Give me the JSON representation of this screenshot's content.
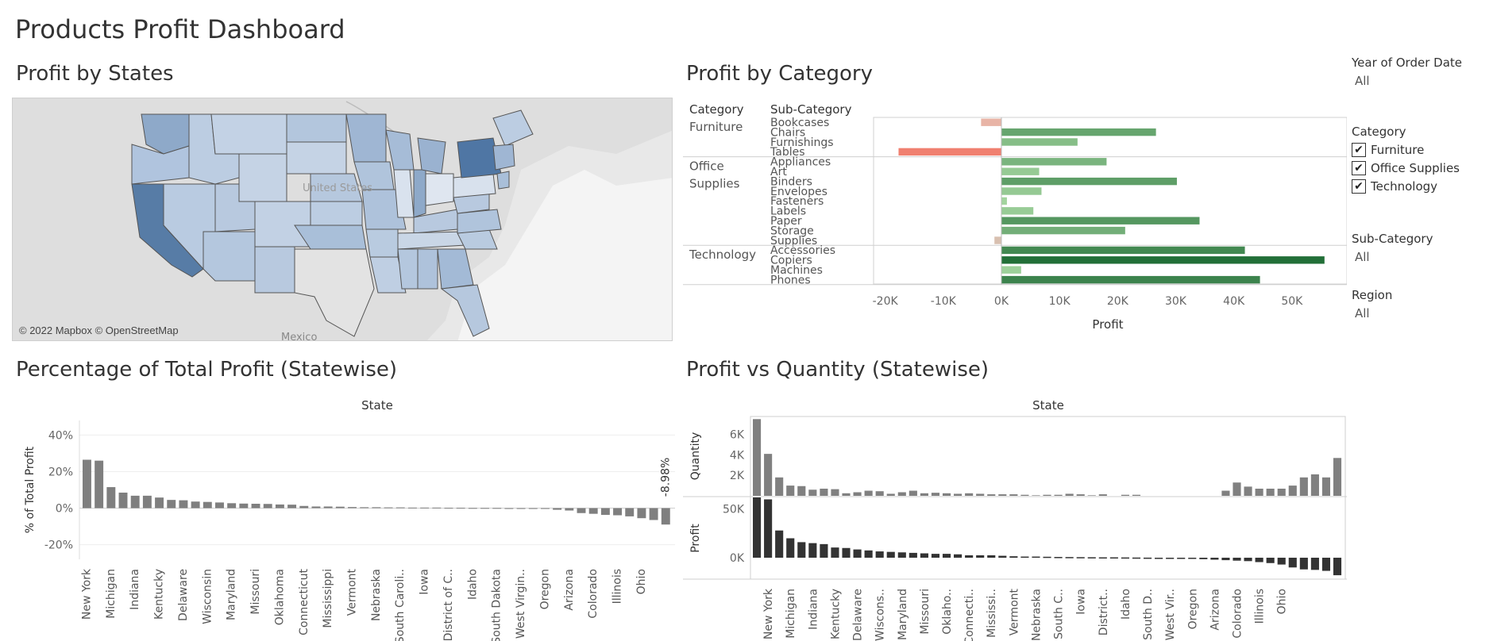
{
  "dashboard_title": "Products Profit Dashboard",
  "map_panel": {
    "title": "Profit by States",
    "attribution": "© 2022 Mapbox © OpenStreetMap",
    "place_labels": {
      "country": "United States",
      "south": "Mexico"
    }
  },
  "filters": {
    "year": {
      "title": "Year of Order Date",
      "value": "All"
    },
    "category": {
      "title": "Category",
      "options": [
        {
          "label": "Furniture",
          "checked": true
        },
        {
          "label": "Office Supplies",
          "checked": true
        },
        {
          "label": "Technology",
          "checked": true
        }
      ]
    },
    "subcategory": {
      "title": "Sub-Category",
      "value": "All"
    },
    "region": {
      "title": "Region",
      "value": "All"
    }
  },
  "colors": {
    "positive_profit": "#2e7d3e",
    "negative_profit": "#f08070",
    "bar_gray": "#7f7f7f",
    "bar_dark": "#333333",
    "map_high": "#4a6f9a",
    "map_low": "#c9d6e6"
  },
  "chart_data": [
    {
      "id": "profit_by_category",
      "title": "Profit by Category",
      "type": "bar",
      "orientation": "horizontal",
      "row_headers": [
        "Category",
        "Sub-Category"
      ],
      "groups": [
        {
          "category": "Furniture",
          "items": [
            {
              "sub": "Bookcases",
              "value": -3500
            },
            {
              "sub": "Chairs",
              "value": 26600
            },
            {
              "sub": "Furnishings",
              "value": 13100
            },
            {
              "sub": "Tables",
              "value": -17700
            }
          ]
        },
        {
          "category": "Office Supplies",
          "items": [
            {
              "sub": "Appliances",
              "value": 18100
            },
            {
              "sub": "Art",
              "value": 6500
            },
            {
              "sub": "Binders",
              "value": 30200
            },
            {
              "sub": "Envelopes",
              "value": 6900
            },
            {
              "sub": "Fasteners",
              "value": 950
            },
            {
              "sub": "Labels",
              "value": 5500
            },
            {
              "sub": "Paper",
              "value": 34100
            },
            {
              "sub": "Storage",
              "value": 21300
            },
            {
              "sub": "Supplies",
              "value": -1200
            }
          ]
        },
        {
          "category": "Technology",
          "items": [
            {
              "sub": "Accessories",
              "value": 41900
            },
            {
              "sub": "Copiers",
              "value": 55600
            },
            {
              "sub": "Machines",
              "value": 3400
            },
            {
              "sub": "Phones",
              "value": 44500
            }
          ]
        }
      ],
      "xlabel": "Profit",
      "xlim": [
        -22000,
        60000
      ],
      "xticks": [
        {
          "v": -20000,
          "label": "-20K"
        },
        {
          "v": -10000,
          "label": "-10K"
        },
        {
          "v": 0,
          "label": "0K"
        },
        {
          "v": 10000,
          "label": "10K"
        },
        {
          "v": 20000,
          "label": "20K"
        },
        {
          "v": 30000,
          "label": "30K"
        },
        {
          "v": 40000,
          "label": "40K"
        },
        {
          "v": 50000,
          "label": "50K"
        }
      ]
    },
    {
      "id": "pct_total_profit",
      "title": "Percentage of Total Profit (Statewise)",
      "type": "bar",
      "column_header": "State",
      "ylabel": "% of Total Profit",
      "ylim": [
        -28,
        48
      ],
      "yticks": [
        {
          "v": 40,
          "label": "40%"
        },
        {
          "v": 20,
          "label": "20%"
        },
        {
          "v": 0,
          "label": "0%"
        },
        {
          "v": -20,
          "label": "-20%"
        }
      ],
      "values": [
        26.5,
        26.0,
        11.5,
        8.5,
        6.8,
        6.8,
        5.8,
        4.5,
        4.3,
        3.6,
        3.4,
        3.1,
        2.7,
        2.5,
        2.4,
        2.3,
        2.0,
        1.9,
        1.2,
        0.9,
        0.9,
        0.8,
        0.6,
        0.5,
        0.5,
        0.4,
        0.4,
        0.3,
        0.3,
        0.3,
        0.2,
        0.2,
        0.1,
        0.1,
        0.1,
        0.0,
        -0.1,
        -0.2,
        -0.4,
        -0.9,
        -1.3,
        -2.7,
        -3.1,
        -3.7,
        -3.9,
        -4.5,
        -5.5,
        -6.5,
        -8.98
      ],
      "x_tick_labels": [
        {
          "i": 0,
          "label": "New York"
        },
        {
          "i": 2,
          "label": "Michigan"
        },
        {
          "i": 4,
          "label": "Indiana"
        },
        {
          "i": 6,
          "label": "Kentucky"
        },
        {
          "i": 8,
          "label": "Delaware"
        },
        {
          "i": 10,
          "label": "Wisconsin"
        },
        {
          "i": 12,
          "label": "Maryland"
        },
        {
          "i": 14,
          "label": "Missouri"
        },
        {
          "i": 16,
          "label": "Oklahoma"
        },
        {
          "i": 18,
          "label": "Connecticut"
        },
        {
          "i": 20,
          "label": "Mississippi"
        },
        {
          "i": 22,
          "label": "Vermont"
        },
        {
          "i": 24,
          "label": "Nebraska"
        },
        {
          "i": 26,
          "label": "South Caroli.."
        },
        {
          "i": 28,
          "label": "Iowa"
        },
        {
          "i": 30,
          "label": "District of C.."
        },
        {
          "i": 32,
          "label": "Idaho"
        },
        {
          "i": 34,
          "label": "South Dakota"
        },
        {
          "i": 36,
          "label": "West Virgin.."
        },
        {
          "i": 38,
          "label": "Oregon"
        },
        {
          "i": 40,
          "label": "Arizona"
        },
        {
          "i": 42,
          "label": "Colorado"
        },
        {
          "i": 44,
          "label": "Illinois"
        },
        {
          "i": 46,
          "label": "Ohio"
        }
      ],
      "annotation": {
        "i": 48,
        "label": "-8.98%"
      }
    },
    {
      "id": "profit_vs_quantity",
      "title": "Profit vs Quantity (Statewise)",
      "type": "bar",
      "column_header": "State",
      "quantity": {
        "ylabel": "Quantity",
        "ylim": [
          0,
          7600
        ],
        "yticks": [
          {
            "v": 6000,
            "label": "6K"
          },
          {
            "v": 4000,
            "label": "4K"
          },
          {
            "v": 2000,
            "label": "2K"
          }
        ],
        "values": [
          7500,
          4100,
          1800,
          1000,
          950,
          600,
          700,
          650,
          250,
          350,
          500,
          450,
          200,
          350,
          500,
          250,
          300,
          250,
          200,
          250,
          200,
          150,
          150,
          150,
          100,
          50,
          100,
          100,
          200,
          150,
          50,
          150,
          0,
          100,
          100,
          0,
          0,
          0,
          0,
          0,
          0,
          0,
          500,
          1300,
          900,
          700,
          700,
          700,
          1000,
          1800,
          2100,
          1800,
          3700
        ]
      },
      "profit": {
        "ylabel": "Profit",
        "ylim": [
          -22000,
          62000
        ],
        "yticks": [
          {
            "v": 50000,
            "label": "50K"
          },
          {
            "v": 0,
            "label": "0K"
          }
        ],
        "values": [
          62000,
          60000,
          28000,
          20000,
          16000,
          15000,
          14000,
          10500,
          10000,
          8500,
          7500,
          6500,
          6000,
          5500,
          5000,
          4500,
          4000,
          4000,
          3500,
          2500,
          2500,
          2500,
          2000,
          1500,
          1200,
          1200,
          1000,
          800,
          700,
          600,
          500,
          400,
          400,
          300,
          200,
          100,
          -300,
          -500,
          -800,
          -1000,
          -1500,
          -2000,
          -2500,
          -3000,
          -3500,
          -4500,
          -5500,
          -7000,
          -10000,
          -12000,
          -12500,
          -13500,
          -18000
        ]
      },
      "x_tick_labels": [
        {
          "i": 1,
          "label": "New York"
        },
        {
          "i": 3,
          "label": "Michigan"
        },
        {
          "i": 5,
          "label": "Indiana"
        },
        {
          "i": 7,
          "label": "Kentucky"
        },
        {
          "i": 9,
          "label": "Delaware"
        },
        {
          "i": 11,
          "label": "Wiscons.."
        },
        {
          "i": 13,
          "label": "Maryland"
        },
        {
          "i": 15,
          "label": "Missouri"
        },
        {
          "i": 17,
          "label": "Oklaho.."
        },
        {
          "i": 19,
          "label": "Connecti.."
        },
        {
          "i": 21,
          "label": "Mississi.."
        },
        {
          "i": 23,
          "label": "Vermont"
        },
        {
          "i": 25,
          "label": "Nebraska"
        },
        {
          "i": 27,
          "label": "South C.."
        },
        {
          "i": 29,
          "label": "Iowa"
        },
        {
          "i": 31,
          "label": "District.."
        },
        {
          "i": 33,
          "label": "Idaho"
        },
        {
          "i": 35,
          "label": "South D.."
        },
        {
          "i": 37,
          "label": "West Vir.."
        },
        {
          "i": 39,
          "label": "Oregon"
        },
        {
          "i": 41,
          "label": "Arizona"
        },
        {
          "i": 43,
          "label": "Colorado"
        },
        {
          "i": 45,
          "label": "Illinois"
        },
        {
          "i": 47,
          "label": "Ohio"
        }
      ]
    }
  ]
}
